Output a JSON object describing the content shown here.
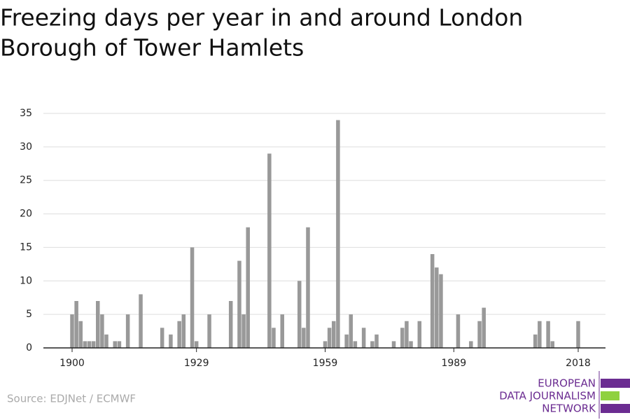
{
  "chart_data": {
    "type": "bar",
    "title_lines": [
      "Freezing days per year in and around London",
      "Borough of Tower Hamlets"
    ],
    "source": "Source: EDJNet / ECMWF",
    "logo": [
      "EUROPEAN",
      "DATA JOURNALISM",
      "NETWORK"
    ],
    "color": "#999999",
    "grid": true,
    "x": [
      1900,
      1901,
      1902,
      1903,
      1904,
      1905,
      1906,
      1907,
      1908,
      1909,
      1910,
      1911,
      1912,
      1913,
      1914,
      1915,
      1916,
      1917,
      1918,
      1919,
      1920,
      1921,
      1922,
      1923,
      1924,
      1925,
      1926,
      1927,
      1928,
      1929,
      1930,
      1931,
      1932,
      1933,
      1934,
      1935,
      1936,
      1937,
      1938,
      1939,
      1940,
      1941,
      1942,
      1943,
      1944,
      1945,
      1946,
      1947,
      1948,
      1949,
      1950,
      1951,
      1952,
      1953,
      1954,
      1955,
      1956,
      1957,
      1958,
      1959,
      1960,
      1961,
      1962,
      1963,
      1964,
      1965,
      1966,
      1967,
      1968,
      1969,
      1970,
      1971,
      1972,
      1973,
      1974,
      1975,
      1976,
      1977,
      1978,
      1979,
      1980,
      1981,
      1982,
      1983,
      1984,
      1985,
      1986,
      1987,
      1988,
      1989,
      1990,
      1991,
      1992,
      1993,
      1994,
      1995,
      1996,
      1997,
      1998,
      1999,
      2000,
      2001,
      2002,
      2003,
      2004,
      2005,
      2006,
      2007,
      2008,
      2009,
      2010,
      2011,
      2012,
      2013,
      2014,
      2015,
      2016,
      2017,
      2018
    ],
    "values": [
      5,
      7,
      4,
      1,
      1,
      1,
      7,
      5,
      2,
      0,
      1,
      1,
      0,
      5,
      0,
      0,
      8,
      0,
      0,
      0,
      0,
      3,
      0,
      2,
      0,
      4,
      5,
      0,
      15,
      1,
      0,
      0,
      5,
      0,
      0,
      0,
      0,
      7,
      0,
      13,
      5,
      18,
      0,
      0,
      0,
      0,
      29,
      3,
      0,
      5,
      0,
      0,
      0,
      10,
      3,
      18,
      0,
      0,
      0,
      1,
      3,
      4,
      34,
      0,
      2,
      5,
      1,
      0,
      3,
      0,
      1,
      2,
      0,
      0,
      0,
      1,
      0,
      3,
      4,
      1,
      0,
      4,
      0,
      0,
      14,
      12,
      11,
      0,
      0,
      0,
      5,
      0,
      0,
      1,
      0,
      4,
      6,
      0,
      0,
      0,
      0,
      0,
      0,
      0,
      0,
      0,
      0,
      0,
      2,
      4,
      0,
      4,
      1,
      0,
      0,
      0,
      0,
      0,
      4
    ],
    "xlim": [
      1900,
      2018
    ],
    "xticks": [
      1900,
      1929,
      1959,
      1989,
      2018
    ],
    "ylim": [
      0,
      35
    ],
    "yticks": [
      0,
      5,
      10,
      15,
      20,
      25,
      30,
      35
    ]
  }
}
